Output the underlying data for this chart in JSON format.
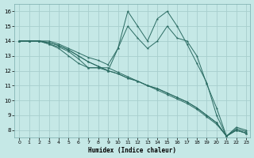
{
  "xlabel": "Humidex (Indice chaleur)",
  "bg_color": "#c5e8e6",
  "grid_color": "#a8cece",
  "line_color": "#2a6b62",
  "xlim_min": -0.5,
  "xlim_max": 23.4,
  "ylim_min": 7.5,
  "ylim_max": 16.5,
  "yticks": [
    8,
    9,
    10,
    11,
    12,
    13,
    14,
    15,
    16
  ],
  "xticks": [
    0,
    1,
    2,
    3,
    4,
    5,
    6,
    7,
    8,
    9,
    10,
    11,
    12,
    13,
    14,
    15,
    16,
    17,
    18,
    19,
    20,
    21,
    22,
    23
  ],
  "series": [
    [
      14.0,
      14.0,
      14.0,
      14.0,
      13.8,
      13.5,
      13.2,
      12.9,
      12.7,
      12.4,
      13.5,
      15.0,
      14.2,
      13.5,
      14.0,
      15.0,
      14.2,
      14.0,
      13.0,
      11.1,
      9.5,
      7.6,
      8.0,
      7.8
    ],
    [
      14.0,
      14.0,
      14.0,
      13.9,
      13.7,
      13.4,
      13.0,
      12.6,
      12.3,
      12.0,
      11.8,
      11.5,
      11.3,
      11.0,
      10.8,
      10.5,
      10.2,
      9.9,
      9.5,
      9.0,
      8.5,
      7.6,
      8.0,
      7.8
    ],
    [
      14.0,
      14.0,
      14.0,
      13.9,
      13.7,
      13.4,
      13.0,
      12.6,
      12.3,
      12.0,
      11.8,
      11.5,
      11.3,
      11.0,
      10.8,
      10.5,
      10.2,
      9.9,
      9.5,
      9.0,
      8.5,
      7.6,
      8.1,
      7.9
    ],
    [
      14.0,
      14.0,
      14.0,
      13.8,
      13.6,
      13.3,
      12.8,
      12.2,
      12.2,
      12.2,
      11.9,
      11.6,
      11.3,
      11.0,
      10.7,
      10.4,
      10.1,
      9.8,
      9.4,
      8.9,
      8.4,
      7.6,
      8.0,
      7.8
    ],
    [
      14.0,
      14.0,
      14.0,
      13.8,
      13.5,
      13.0,
      12.5,
      12.2,
      12.2,
      12.0,
      13.5,
      16.0,
      15.0,
      14.0,
      15.5,
      16.0,
      15.0,
      13.8,
      12.5,
      11.2,
      9.0,
      7.6,
      8.2,
      8.0
    ]
  ]
}
